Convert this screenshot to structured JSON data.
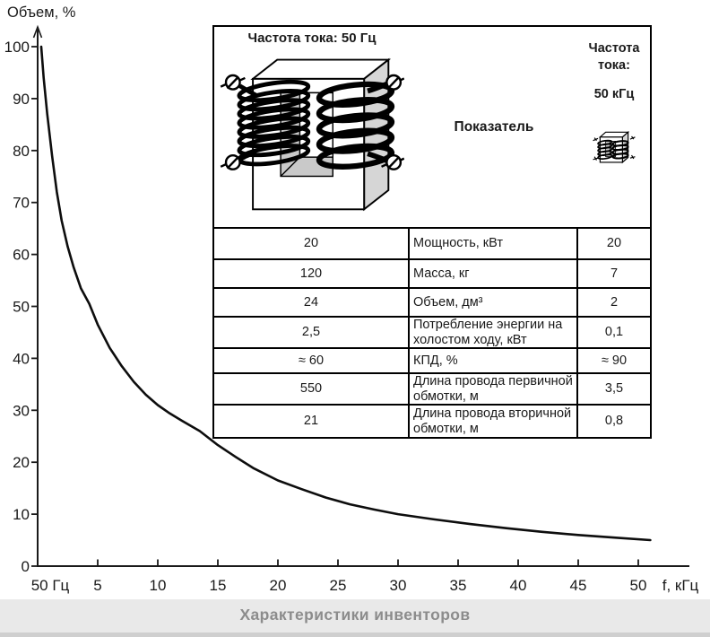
{
  "caption": "Характеристики инвенторов",
  "chart_data": {
    "type": "line",
    "title": "Характеристики инвенторов",
    "xlabel": "f, кГц",
    "ylabel": "Объем, %",
    "x_origin_label": "50 Гц",
    "xlim": [
      0,
      55
    ],
    "ylim": [
      0,
      100
    ],
    "x_ticks": [
      5,
      10,
      15,
      20,
      25,
      30,
      35,
      40,
      45,
      50
    ],
    "y_ticks": [
      0,
      10,
      20,
      30,
      40,
      50,
      60,
      70,
      80,
      90,
      100
    ],
    "grid": false,
    "legend": "none",
    "series": [
      {
        "name": "Объем, %",
        "points": [
          [
            0.3,
            100
          ],
          [
            0.5,
            94
          ],
          [
            0.8,
            87
          ],
          [
            1.2,
            79
          ],
          [
            1.6,
            72
          ],
          [
            2,
            66.5
          ],
          [
            2.5,
            61.5
          ],
          [
            3,
            57.5
          ],
          [
            3.6,
            53.5
          ],
          [
            4.3,
            50.5
          ],
          [
            5,
            46.5
          ],
          [
            6,
            42
          ],
          [
            7,
            38.5
          ],
          [
            8,
            35.5
          ],
          [
            9,
            33
          ],
          [
            10,
            31
          ],
          [
            11,
            29.4
          ],
          [
            12,
            28
          ],
          [
            13.5,
            26
          ],
          [
            15,
            23.3
          ],
          [
            16.5,
            21
          ],
          [
            18,
            18.8
          ],
          [
            20,
            16.5
          ],
          [
            22,
            14.8
          ],
          [
            24,
            13.2
          ],
          [
            26,
            11.9
          ],
          [
            28,
            10.9
          ],
          [
            30,
            10
          ],
          [
            33,
            9
          ],
          [
            36,
            8.1
          ],
          [
            39,
            7.3
          ],
          [
            42,
            6.6
          ],
          [
            45,
            6
          ],
          [
            48,
            5.5
          ],
          [
            51,
            5
          ]
        ]
      }
    ]
  },
  "table": {
    "col_50hz_header": "Частота тока: 50 Гц",
    "col_indicator_header": "Показатель",
    "col_50khz_header_line1": "Частота тока:",
    "col_50khz_header_line2": "50 кГц",
    "rows": [
      {
        "v50hz": "20",
        "label": "Мощность, кВт",
        "v50khz": "20"
      },
      {
        "v50hz": "120",
        "label": "Масса, кг",
        "v50khz": "7"
      },
      {
        "v50hz": "24",
        "label": "Объем, дм³",
        "v50khz": "2"
      },
      {
        "v50hz": "2,5",
        "label": "Потребление энергии на холостом ходу, кВт",
        "v50khz": "0,1"
      },
      {
        "v50hz": "≈ 60",
        "label": "КПД, %",
        "v50khz": "≈ 90"
      },
      {
        "v50hz": "550",
        "label": "Длина провода первичной обмотки, м",
        "v50khz": "3,5"
      },
      {
        "v50hz": "21",
        "label": "Длина провода вторичной обмотки, м",
        "v50khz": "0,8"
      }
    ]
  },
  "colors": {
    "curve": "#0d0d0d",
    "caption_bg": "#e9e9e9",
    "caption_text": "#8c8c8c",
    "core_side": "#d6d6d6",
    "core_window": "#c9c9c9"
  }
}
